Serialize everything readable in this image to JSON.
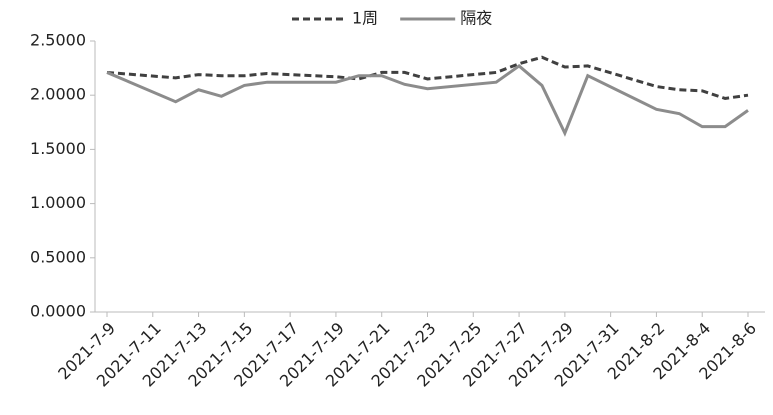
{
  "chart_data": {
    "type": "line",
    "x": [
      "2021-7-9",
      "2021-7-12",
      "2021-7-13",
      "2021-7-14",
      "2021-7-15",
      "2021-7-16",
      "2021-7-19",
      "2021-7-20",
      "2021-7-21",
      "2021-7-22",
      "2021-7-23",
      "2021-7-26",
      "2021-7-27",
      "2021-7-28",
      "2021-7-29",
      "2021-7-30",
      "2021-8-2",
      "2021-8-3",
      "2021-8-4",
      "2021-8-5",
      "2021-8-6"
    ],
    "series": [
      {
        "name": "1周",
        "color": "#404040",
        "dashed": true,
        "values": [
          2.21,
          2.16,
          2.19,
          2.18,
          2.18,
          2.2,
          2.17,
          2.15,
          2.21,
          2.21,
          2.15,
          2.21,
          2.29,
          2.35,
          2.26,
          2.27,
          2.08,
          2.05,
          2.04,
          1.97,
          2.0
        ]
      },
      {
        "name": "隔夜",
        "color": "#8c8c8c",
        "dashed": false,
        "values": [
          2.21,
          1.94,
          2.05,
          1.99,
          2.09,
          2.12,
          2.12,
          2.18,
          2.18,
          2.1,
          2.06,
          2.12,
          2.27,
          2.09,
          1.65,
          2.18,
          1.87,
          1.83,
          1.71,
          1.71,
          1.86
        ]
      }
    ],
    "xlim": [
      "2021-7-9",
      "2021-8-6"
    ],
    "xticks": [
      "2021-7-9",
      "2021-7-11",
      "2021-7-13",
      "2021-7-15",
      "2021-7-17",
      "2021-7-19",
      "2021-7-21",
      "2021-7-23",
      "2021-7-25",
      "2021-7-27",
      "2021-7-29",
      "2021-7-31",
      "2021-8-2",
      "2021-8-4",
      "2021-8-6"
    ],
    "ylim": [
      0,
      2.5
    ],
    "yticks": [
      {
        "value": 0,
        "label": "0.0000"
      },
      {
        "value": 0.5,
        "label": "0.5000"
      },
      {
        "value": 1,
        "label": "1.0000"
      },
      {
        "value": 1.5,
        "label": "1.5000"
      },
      {
        "value": 2,
        "label": "2.0000"
      },
      {
        "value": 2.5,
        "label": "2.5000"
      }
    ],
    "legend": "top"
  }
}
